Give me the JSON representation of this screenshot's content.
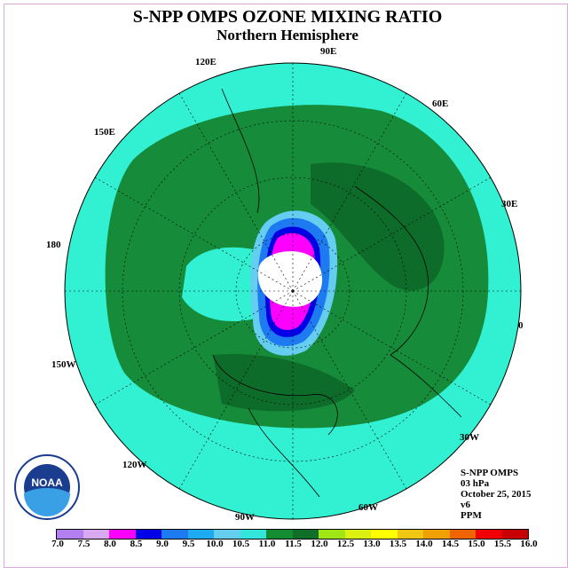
{
  "title": "S-NPP OMPS OZONE MIXING RATIO",
  "subtitle": "Northern Hemisphere",
  "longitude_labels": [
    "90E",
    "60E",
    "30E",
    "0",
    "30W",
    "60W",
    "90W",
    "120W",
    "150W",
    "180",
    "150E",
    "120E"
  ],
  "info": {
    "instrument": "S-NPP OMPS",
    "level": "03 hPa",
    "date": "October 25, 2015",
    "version": "v6",
    "units": "PPM"
  },
  "colorbar": {
    "ticks": [
      "7.0",
      "7.5",
      "8.0",
      "8.5",
      "9.0",
      "9.5",
      "10.0",
      "10.5",
      "11.0",
      "11.5",
      "12.0",
      "12.5",
      "13.0",
      "13.5",
      "14.0",
      "14.5",
      "15.0",
      "15.5",
      "16.0"
    ],
    "colors": [
      "#b37ff0",
      "#d8a8f0",
      "#ff00ff",
      "#0000e6",
      "#1e7af0",
      "#1eaaf0",
      "#64cdf0",
      "#32e6dc",
      "#148c32",
      "#0f6e28",
      "#a0e614",
      "#dcf014",
      "#ffff00",
      "#f0c814",
      "#f0a000",
      "#f06400",
      "#f00000",
      "#c80000"
    ]
  },
  "logo": {
    "text": "NOAA"
  }
}
